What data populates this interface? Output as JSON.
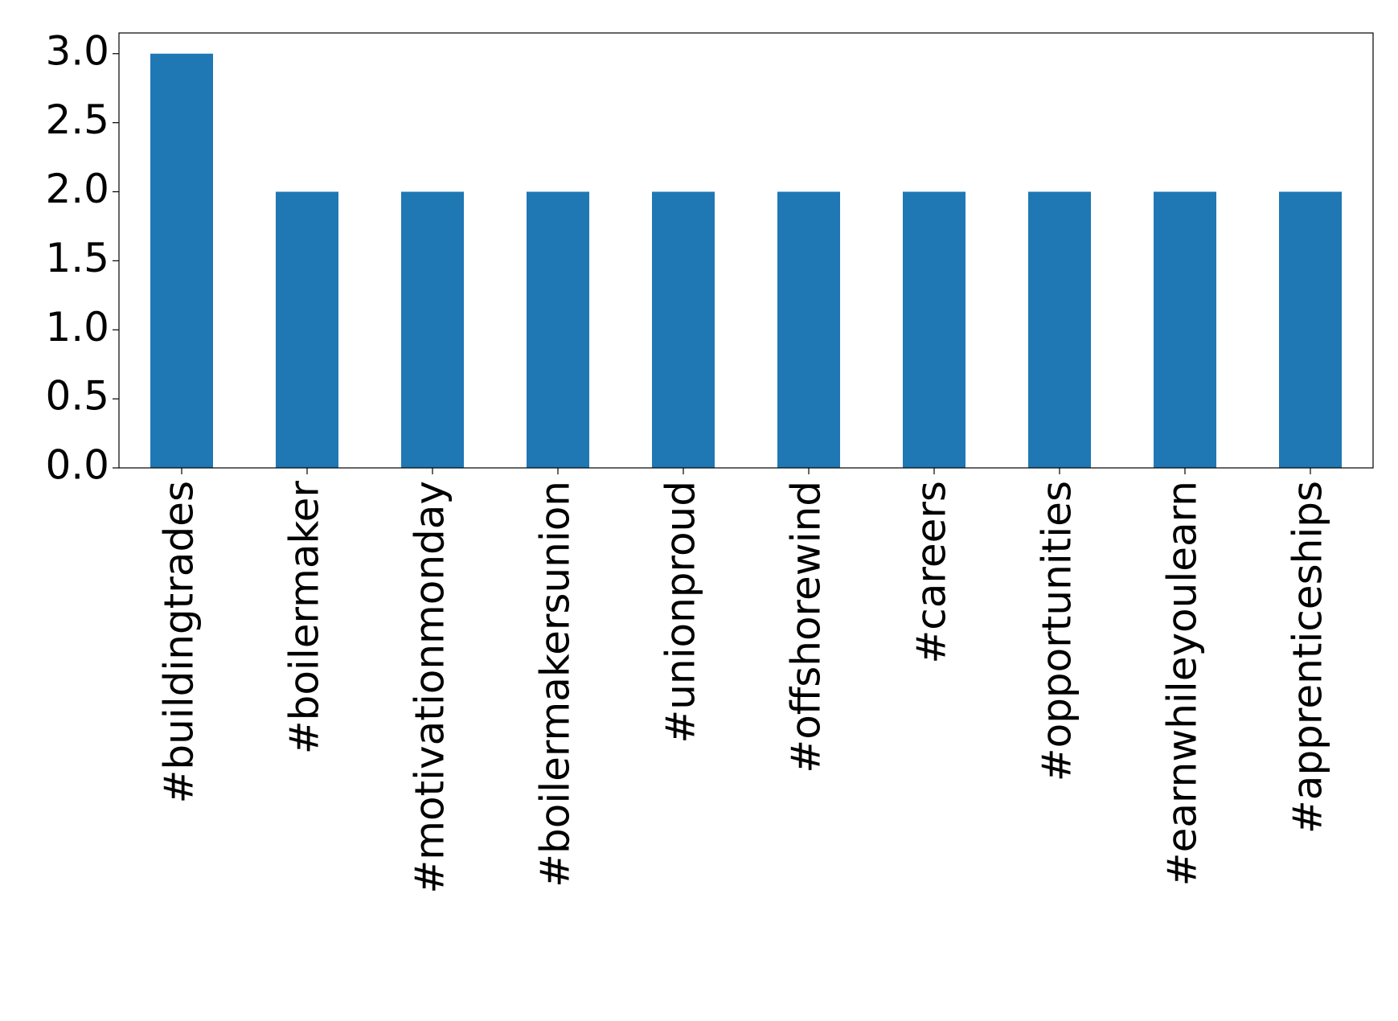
{
  "chart_data": {
    "type": "bar",
    "categories": [
      "#buildingtrades",
      "#boilermaker",
      "#motivationmonday",
      "#boilermakersunion",
      "#unionproud",
      "#offshorewind",
      "#careers",
      "#opportunities",
      "#earnwhileyoulearn",
      "#apprenticeships"
    ],
    "values": [
      3,
      2,
      2,
      2,
      2,
      2,
      2,
      2,
      2,
      2
    ],
    "color": "#1f77b4",
    "ylim": [
      0,
      3.15
    ],
    "yticks": [
      {
        "value": 0,
        "label": "0.0"
      },
      {
        "value": 0.5,
        "label": "0.5"
      },
      {
        "value": 1,
        "label": "1.0"
      },
      {
        "value": 1.5,
        "label": "1.5"
      },
      {
        "value": 2,
        "label": "2.0"
      },
      {
        "value": 2.5,
        "label": "2.5"
      },
      {
        "value": 3,
        "label": "3.0"
      }
    ],
    "grid": false
  }
}
